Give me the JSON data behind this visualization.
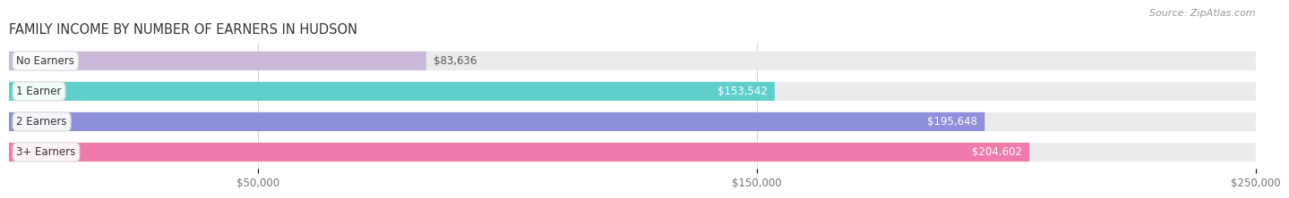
{
  "title": "FAMILY INCOME BY NUMBER OF EARNERS IN HUDSON",
  "source": "Source: ZipAtlas.com",
  "categories": [
    "No Earners",
    "1 Earner",
    "2 Earners",
    "3+ Earners"
  ],
  "values": [
    83636,
    153542,
    195648,
    204602
  ],
  "labels": [
    "$83,636",
    "$153,542",
    "$195,648",
    "$204,602"
  ],
  "label_inside": [
    false,
    true,
    true,
    true
  ],
  "bar_colors": [
    "#c9b8d8",
    "#5ecfcb",
    "#8f8fdb",
    "#f07aaa"
  ],
  "bar_bg_color": "#ebebeb",
  "background_color": "#ffffff",
  "xlim_min": 0,
  "xlim_max": 250000,
  "xticks": [
    50000,
    150000,
    250000
  ],
  "xtick_labels": [
    "$50,000",
    "$150,000",
    "$250,000"
  ],
  "title_fontsize": 10.5,
  "source_fontsize": 8,
  "label_fontsize": 8.5,
  "category_fontsize": 8.5,
  "bar_height": 0.62,
  "rounding_size": 0.25
}
